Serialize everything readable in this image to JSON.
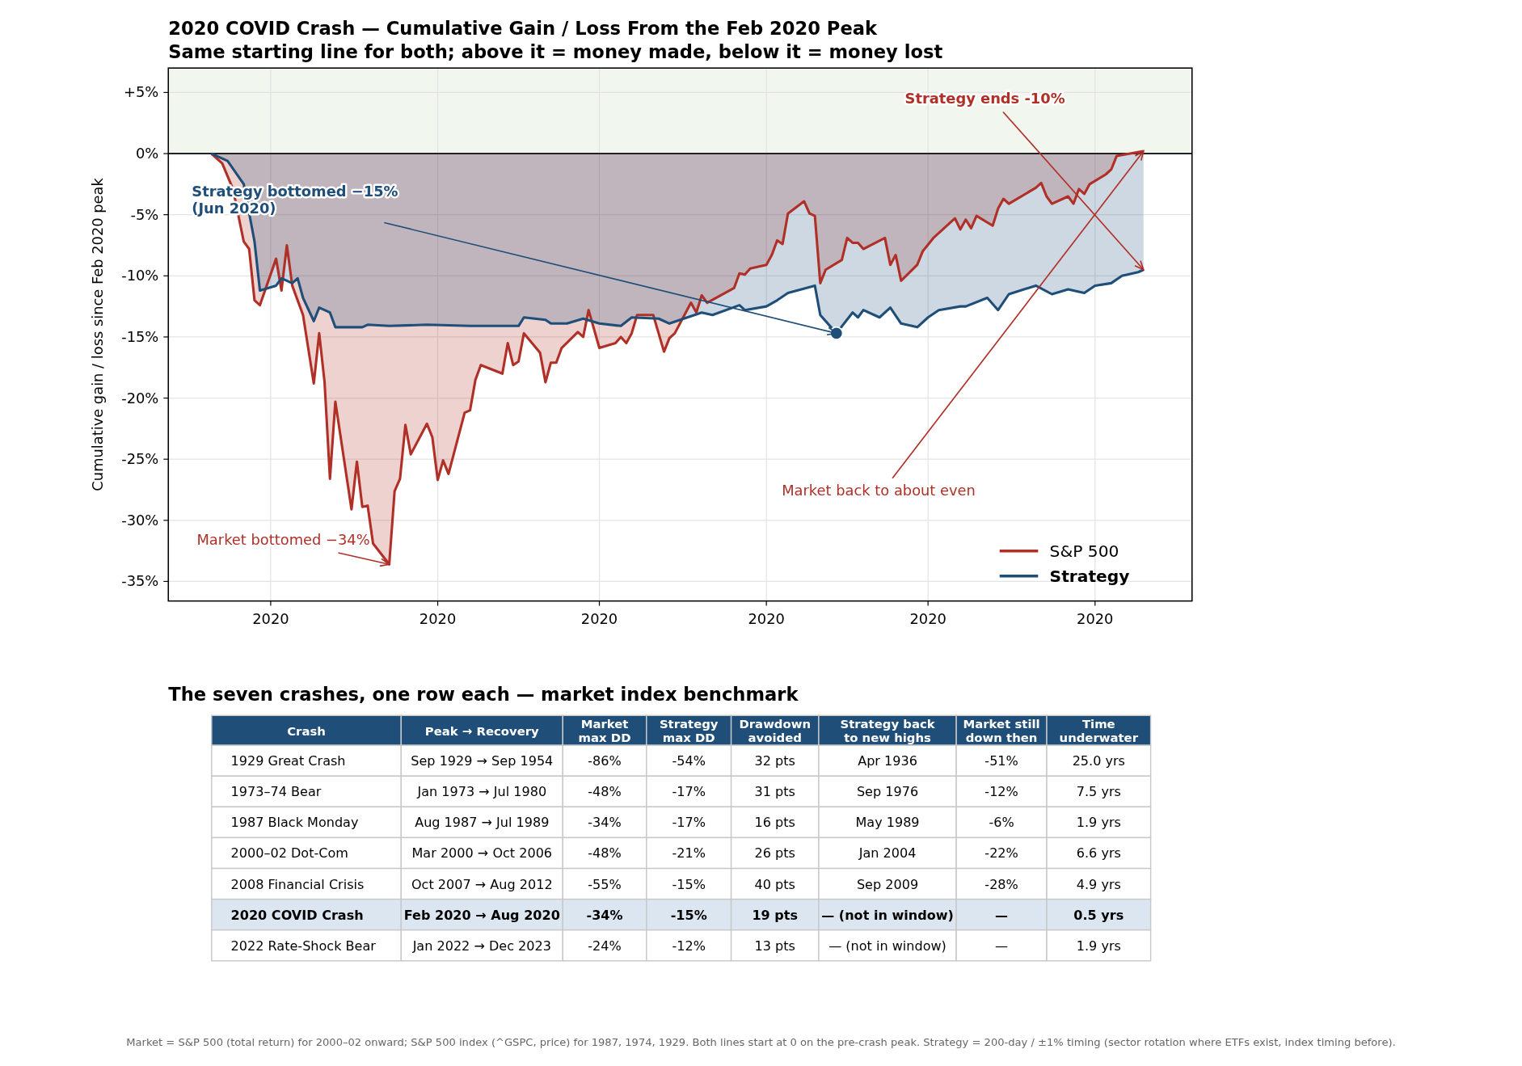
{
  "chart_data": [
    {
      "type": "area",
      "title": "2020 COVID Crash — Cumulative Gain / Loss From the Feb 2020 Peak",
      "subtitle": "Same starting line for both; above it = money made, below it = money lost",
      "ylabel": "Cumulative gain / loss since Feb 2020 peak",
      "xlim": [
        "2020-02-11",
        "2020-08-19"
      ],
      "ylim": [
        -36.6,
        7
      ],
      "xticks": [
        {
          "value": "2020-03-01",
          "label": "2020"
        },
        {
          "value": "2020-04-01",
          "label": "2020"
        },
        {
          "value": "2020-05-01",
          "label": "2020"
        },
        {
          "value": "2020-06-01",
          "label": "2020"
        },
        {
          "value": "2020-07-01",
          "label": "2020"
        },
        {
          "value": "2020-08-01",
          "label": "2020"
        }
      ],
      "yticks": [
        {
          "value": 5,
          "label": "+5%"
        },
        {
          "value": 0,
          "label": "0%"
        },
        {
          "value": -5,
          "label": "-5%"
        },
        {
          "value": -10,
          "label": "-10%"
        },
        {
          "value": -15,
          "label": "-15%"
        },
        {
          "value": -20,
          "label": "-20%"
        },
        {
          "value": -25,
          "label": "-25%"
        },
        {
          "value": -30,
          "label": "-30%"
        },
        {
          "value": -35,
          "label": "-35%"
        }
      ],
      "grid": true,
      "legend": "bottom right",
      "bands": [
        {
          "axis": "y",
          "from": 0,
          "to": 7,
          "color": "#f1f6ef"
        }
      ],
      "ref_lines": [
        {
          "axis": "y",
          "value": 0,
          "color": "#222222"
        }
      ],
      "series": [
        {
          "name": "S&P 500",
          "color": "#b03028",
          "x": [
            "2020-02-19",
            "2020-02-21",
            "2020-02-23",
            "2020-02-25",
            "2020-02-26",
            "2020-02-27",
            "2020-02-28",
            "2020-03-02",
            "2020-03-03",
            "2020-03-04",
            "2020-03-05",
            "2020-03-07",
            "2020-03-09",
            "2020-03-10",
            "2020-03-11",
            "2020-03-12",
            "2020-03-13",
            "2020-03-16",
            "2020-03-17",
            "2020-03-18",
            "2020-03-19",
            "2020-03-20",
            "2020-03-23",
            "2020-03-24",
            "2020-03-25",
            "2020-03-26",
            "2020-03-27",
            "2020-03-30",
            "2020-03-31",
            "2020-04-01",
            "2020-04-02",
            "2020-04-03",
            "2020-04-06",
            "2020-04-07",
            "2020-04-08",
            "2020-04-09",
            "2020-04-13",
            "2020-04-14",
            "2020-04-15",
            "2020-04-16",
            "2020-04-17",
            "2020-04-20",
            "2020-04-21",
            "2020-04-22",
            "2020-04-23",
            "2020-04-24",
            "2020-04-27",
            "2020-04-28",
            "2020-04-29",
            "2020-05-01",
            "2020-05-04",
            "2020-05-05",
            "2020-05-06",
            "2020-05-07",
            "2020-05-08",
            "2020-05-11",
            "2020-05-12",
            "2020-05-13",
            "2020-05-14",
            "2020-05-15",
            "2020-05-18",
            "2020-05-19",
            "2020-05-20",
            "2020-05-21",
            "2020-05-26",
            "2020-05-27",
            "2020-05-28",
            "2020-05-29",
            "2020-06-01",
            "2020-06-02",
            "2020-06-03",
            "2020-06-04",
            "2020-06-05",
            "2020-06-08",
            "2020-06-09",
            "2020-06-10",
            "2020-06-11",
            "2020-06-12",
            "2020-06-15",
            "2020-06-16",
            "2020-06-17",
            "2020-06-18",
            "2020-06-19",
            "2020-06-23",
            "2020-06-24",
            "2020-06-25",
            "2020-06-26",
            "2020-06-29",
            "2020-06-30",
            "2020-07-02",
            "2020-07-06",
            "2020-07-07",
            "2020-07-08",
            "2020-07-09",
            "2020-07-10",
            "2020-07-13",
            "2020-07-14",
            "2020-07-15",
            "2020-07-16",
            "2020-07-21",
            "2020-07-22",
            "2020-07-23",
            "2020-07-24",
            "2020-07-27",
            "2020-07-28",
            "2020-07-29",
            "2020-07-30",
            "2020-07-31",
            "2020-08-03",
            "2020-08-04",
            "2020-08-05",
            "2020-08-10"
          ],
          "values": [
            0,
            -0.8,
            -2.9,
            -7.2,
            -7.8,
            -12.0,
            -12.4,
            -8.6,
            -11.2,
            -7.5,
            -10.8,
            -13.2,
            -18.8,
            -14.7,
            -18.7,
            -26.6,
            -20.3,
            -29.1,
            -25.2,
            -28.9,
            -28.8,
            -31.9,
            -33.6,
            -27.6,
            -26.6,
            -22.2,
            -24.6,
            -22.1,
            -23.2,
            -26.7,
            -25.1,
            -26.2,
            -21.2,
            -21.0,
            -18.5,
            -17.3,
            -18.0,
            -15.5,
            -17.3,
            -17.0,
            -14.7,
            -16.3,
            -18.7,
            -17.1,
            -17.1,
            -15.9,
            -14.6,
            -15.0,
            -12.8,
            -15.9,
            -15.5,
            -15.0,
            -15.5,
            -14.7,
            -13.2,
            -13.2,
            -14.7,
            -16.2,
            -15.1,
            -14.7,
            -12.2,
            -13.0,
            -11.6,
            -12.2,
            -11.0,
            -9.8,
            -9.9,
            -9.4,
            -9.1,
            -8.3,
            -7.1,
            -7.4,
            -4.9,
            -3.9,
            -4.9,
            -5.1,
            -10.6,
            -9.5,
            -8.7,
            -6.9,
            -7.3,
            -7.3,
            -7.8,
            -6.9,
            -9.1,
            -8.3,
            -10.4,
            -9.1,
            -8.0,
            -6.9,
            -5.3,
            -6.2,
            -5.4,
            -6.1,
            -5.1,
            -5.9,
            -4.5,
            -3.7,
            -4.1,
            -2.8,
            -2.4,
            -3.5,
            -4.1,
            -3.5,
            -4.1,
            -2.9,
            -3.3,
            -2.5,
            -1.7,
            -1.3,
            -0.2,
            0.2
          ]
        },
        {
          "name": "Strategy",
          "color": "#1f4e79",
          "x": [
            "2020-02-19",
            "2020-02-22",
            "2020-02-25",
            "2020-02-27",
            "2020-02-28",
            "2020-03-02",
            "2020-03-03",
            "2020-03-05",
            "2020-03-06",
            "2020-03-07",
            "2020-03-09",
            "2020-03-10",
            "2020-03-12",
            "2020-03-13",
            "2020-03-18",
            "2020-03-19",
            "2020-03-23",
            "2020-03-30",
            "2020-04-07",
            "2020-04-16",
            "2020-04-17",
            "2020-04-21",
            "2020-04-22",
            "2020-04-25",
            "2020-04-28",
            "2020-05-01",
            "2020-05-05",
            "2020-05-07",
            "2020-05-12",
            "2020-05-14",
            "2020-05-18",
            "2020-05-20",
            "2020-05-22",
            "2020-05-27",
            "2020-05-28",
            "2020-06-01",
            "2020-06-03",
            "2020-06-05",
            "2020-06-10",
            "2020-06-11",
            "2020-06-14",
            "2020-06-17",
            "2020-06-18",
            "2020-06-19",
            "2020-06-22",
            "2020-06-24",
            "2020-06-26",
            "2020-06-29",
            "2020-07-01",
            "2020-07-03",
            "2020-07-07",
            "2020-07-08",
            "2020-07-12",
            "2020-07-14",
            "2020-07-16",
            "2020-07-21",
            "2020-07-24",
            "2020-07-27",
            "2020-07-30",
            "2020-08-01",
            "2020-08-04",
            "2020-08-06",
            "2020-08-09",
            "2020-08-10"
          ],
          "values": [
            0,
            -0.6,
            -2.5,
            -7.2,
            -11.2,
            -10.8,
            -10.2,
            -10.6,
            -10.2,
            -11.8,
            -13.7,
            -12.6,
            -13.0,
            -14.2,
            -14.2,
            -14.0,
            -14.1,
            -14.0,
            -14.1,
            -14.1,
            -13.4,
            -13.6,
            -13.9,
            -13.9,
            -13.5,
            -13.9,
            -14.1,
            -13.4,
            -13.5,
            -13.9,
            -13.3,
            -13.0,
            -13.2,
            -12.4,
            -12.8,
            -12.5,
            -12.0,
            -11.4,
            -10.8,
            -13.2,
            -14.7,
            -13.0,
            -13.4,
            -12.8,
            -13.4,
            -12.6,
            -13.9,
            -14.2,
            -13.4,
            -12.8,
            -12.5,
            -12.5,
            -11.8,
            -12.8,
            -11.5,
            -10.8,
            -11.5,
            -11.1,
            -11.4,
            -10.8,
            -10.6,
            -10.0,
            -9.7,
            -9.5
          ]
        },
        {
          "type": "scatter",
          "color": "#1f4e79",
          "marker": "circle",
          "x": [
            "2020-06-14"
          ],
          "values": [
            -14.7
          ]
        }
      ],
      "annotations": [
        {
          "text": "Strategy bottomed −15%\n(Jun 2020)",
          "x": "2020-06-14",
          "y": -14.7
        },
        {
          "text": "Market bottomed −34%",
          "x": "2020-03-23",
          "y": -33.6
        },
        {
          "text": "Strategy ends -10%",
          "x": "2020-08-10",
          "y": -9.5
        },
        {
          "text": "Market back to about even",
          "x": "2020-08-10",
          "y": 0.2
        },
        "Market = S&P 500 (total return) for 2000–02 onward; S&P 500 index (^GSPC, price) for 1987, 1974, 1929.  Both lines start at 0 on the pre-crash peak.  Strategy = 200-day / ±1% timing (sector rotation where ETFs exist, index timing before)."
      ]
    },
    {
      "type": "other",
      "title": "The seven crashes, one row each — market index benchmark",
      "annotations": [
        "Crash",
        "Peak → Recovery",
        "Market\nmax DD",
        "Strategy\nmax DD",
        "Drawdown\navoided",
        "Strategy back\nto new highs",
        "Market still\ndown then",
        "Time\nunderwater",
        "1929 Great Crash",
        "Sep 1929 → Sep 1954",
        "-86%",
        "-54%",
        "32 pts",
        "Apr 1936",
        "-51%",
        "25.0 yrs",
        "1973–74 Bear",
        "Jan 1973 → Jul 1980",
        "-48%",
        "-17%",
        "31 pts",
        "Sep 1976",
        "-12%",
        "7.5 yrs",
        "1987 Black Monday",
        "Aug 1987 → Jul 1989",
        "-34%",
        "-17%",
        "16 pts",
        "May 1989",
        "-6%",
        "1.9 yrs",
        "2000–02 Dot-Com",
        "Mar 2000 → Oct 2006",
        "-48%",
        "-21%",
        "26 pts",
        "Jan 2004",
        "-22%",
        "6.6 yrs",
        "2008 Financial Crisis",
        "Oct 2007 → Aug 2012",
        "-55%",
        "-15%",
        "40 pts",
        "Sep 2009",
        "-28%",
        "4.9 yrs",
        "2020 COVID Crash",
        "Feb 2020 → Aug 2020",
        "-34%",
        "-15%",
        "19 pts",
        "— (not in window)",
        "—",
        "0.5 yrs",
        "2022 Rate-Shock Bear",
        "Jan 2022 → Dec 2023",
        "-24%",
        "-12%",
        "13 pts",
        "— (not in window)",
        "—",
        "1.9 yrs"
      ]
    }
  ]
}
